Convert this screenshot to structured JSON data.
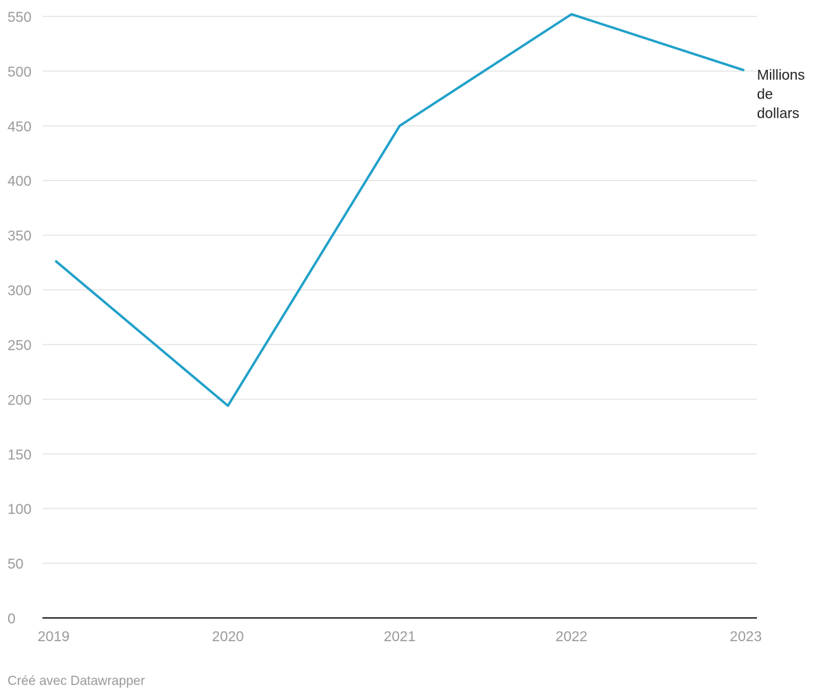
{
  "chart_data": {
    "type": "line",
    "title": "",
    "xlabel": "",
    "ylabel": "",
    "categories": [
      "2019",
      "2020",
      "2021",
      "2022",
      "2023"
    ],
    "series": [
      {
        "name": "Millions de dollars",
        "label_lines": [
          "Millions",
          "de",
          "dollars"
        ],
        "values": [
          326,
          194,
          450,
          552,
          501
        ],
        "color": "#1fa0c9"
      }
    ],
    "ylim": [
      0,
      550
    ],
    "yticks": [
      0,
      50,
      100,
      150,
      200,
      250,
      300,
      350,
      400,
      450,
      500,
      550
    ],
    "grid": true,
    "legend": "inline-right"
  },
  "footer": {
    "credit": "Créé avec Datawrapper"
  },
  "colors": {
    "grid": "#e3e3e3",
    "axis": "#222222",
    "tick_text": "#9a9a9a"
  }
}
